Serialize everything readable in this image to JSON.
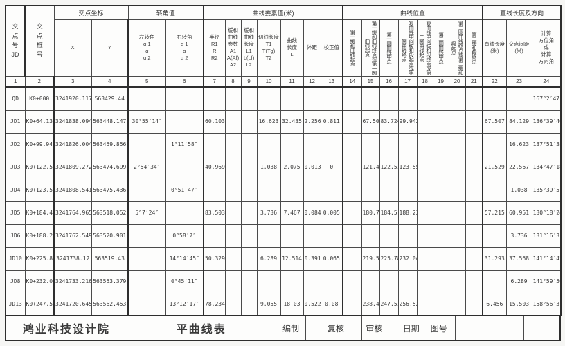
{
  "header": {
    "col1": "交\n点\n号\nJD",
    "col2": "交\n点\n桩\n号",
    "groups": [
      "交点坐标",
      "转角值",
      "曲线要素值(米)",
      "曲线位置",
      "直线长度及方向"
    ],
    "subs": [
      "X",
      "Y",
      "左转角\nα 1\nα\nα 2",
      "右转角\nα 1\nα\nα 2",
      "半径\nR1\nR\nR2",
      "缓和\n曲线\n参数\nA1\nA(Af)\nA2",
      "缓和\n曲线\n长度\nL1\nL(Lf)\nL2",
      "切线长度\nT1\nT(Tg)\nT2",
      "曲线\n长度\nL",
      "外距",
      "校正值",
      "第一缓和曲线起点",
      "第一缓和曲线终点或第一圆曲线起点",
      "第一圆曲线中点",
      "复曲线中间缓和段起点或第一圆曲线终点",
      "复曲线中间缓和段终点或第二圆曲线起点",
      "第二圆曲线中点",
      "第二圆曲线终点或第二缓和段起点",
      "第二缓和段终点",
      "直线长度\n(米)",
      "交点间距\n(米)",
      "计算\n方位角\n或\n计算\n方向角"
    ],
    "numbers": [
      "1",
      "2",
      "3",
      "4",
      "5",
      "6",
      "7",
      "8",
      "9",
      "10",
      "11",
      "12",
      "13",
      "14",
      "15",
      "16",
      "17",
      "18",
      "19",
      "20",
      "21",
      "22",
      "23",
      "24"
    ]
  },
  "rows": [
    [
      "QD",
      "K0+000",
      "3241920.117",
      "563429.44",
      "",
      "",
      "",
      "",
      "",
      "",
      "",
      "",
      "",
      "",
      "",
      "",
      "",
      "",
      "",
      "",
      "",
      "",
      "",
      "167°2′47″"
    ],
    [
      "JD1",
      "K0+64.13",
      "3241838.094",
      "563448.147",
      "30°55′14″",
      "",
      "60.103",
      "",
      "",
      "16.623",
      "32.435",
      "2.256",
      "0.811",
      "",
      "67.507",
      "83.724",
      "99.942",
      "",
      "",
      "",
      "",
      "67.507",
      "84.129",
      "136°39′40″"
    ],
    [
      "JD2",
      "K0+99.942",
      "3241826.004",
      "563459.856",
      "",
      "1°11′58″",
      "",
      "",
      "",
      "",
      "",
      "",
      "",
      "",
      "",
      "",
      "",
      "",
      "",
      "",
      "",
      "",
      "16.623",
      "137°51′38″"
    ],
    [
      "JD3",
      "K0+122.509",
      "3241809.272",
      "563474.699",
      "2°54′34″",
      "",
      "40.969",
      "",
      "",
      "1.038",
      "2.075",
      "0.013",
      "0",
      "",
      "121.47",
      "122.51",
      "123.55",
      "",
      "",
      "",
      "",
      "21.529",
      "22.567",
      "134°47′18″"
    ],
    [
      "JD4",
      "K0+123.547",
      "3241808.541",
      "563475.436",
      "",
      "0°51′47″",
      "",
      "",
      "",
      "",
      "",
      "",
      "",
      "",
      "",
      "",
      "",
      "",
      "",
      "",
      "",
      "",
      "1.038",
      "135°39′5″"
    ],
    [
      "JD5",
      "K0+184.498",
      "3241764.965",
      "563518.052",
      "5°7′24″",
      "",
      "83.503",
      "",
      "",
      "3.736",
      "7.467",
      "0.084",
      "0.005",
      "",
      "180.76",
      "184.5",
      "188.23",
      "",
      "",
      "",
      "",
      "57.215",
      "60.951",
      "130°18′24″"
    ],
    [
      "JD6",
      "K0+188.228",
      "3241762.549",
      "563520.901",
      "",
      "0°58′7″",
      "",
      "",
      "",
      "",
      "",
      "",
      "",
      "",
      "",
      "",
      "",
      "",
      "",
      "",
      "",
      "",
      "3.736",
      "131°16′31″"
    ],
    [
      "JD10",
      "K0+225.811",
      "3241738.12",
      "563519.43",
      "",
      "14°14′45″",
      "50.329",
      "",
      "",
      "6.289",
      "12.514",
      "0.391",
      "0.065",
      "",
      "219.52",
      "225.78",
      "232.04",
      "",
      "",
      "",
      "",
      "31.293",
      "37.568",
      "141°14′45″"
    ],
    [
      "JD8",
      "K0+232.035",
      "3241733.216",
      "563553.379",
      "",
      "0°45′11″",
      "",
      "",
      "",
      "",
      "",
      "",
      "",
      "",
      "",
      "",
      "",
      "",
      "",
      "",
      "",
      "",
      "6.289",
      "141°59′56″"
    ],
    [
      "JD13",
      "K0+247.546",
      "3241720.645",
      "563562.453",
      "",
      "13°12′17″",
      "78.234",
      "",
      "",
      "9.055",
      "18.03",
      "0.522",
      "0.08",
      "",
      "238.49",
      "247.51",
      "256.52",
      "",
      "",
      "",
      "",
      "6.456",
      "15.503",
      "158°56′3″"
    ]
  ],
  "footer": {
    "org": "鸿业科技设计院",
    "sheet": "平曲线表",
    "labels": [
      "编制",
      "复核",
      "审核",
      "日期",
      "图号"
    ]
  }
}
